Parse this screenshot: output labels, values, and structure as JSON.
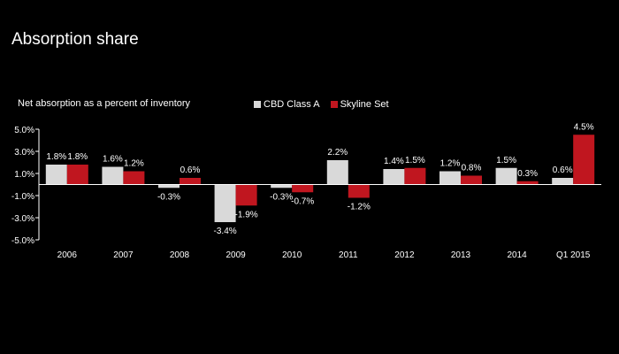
{
  "page": {
    "title": "Absorption share"
  },
  "chart_data": {
    "type": "bar",
    "title": "Absorption share",
    "subtitle": "Net absorption as a percent of inventory",
    "xlabel": "",
    "ylabel": "",
    "categories": [
      "2006",
      "2007",
      "2008",
      "2009",
      "2010",
      "2011",
      "2012",
      "2013",
      "2014",
      "Q1 2015"
    ],
    "series": [
      {
        "name": "CBD Class A",
        "color": "#d9d9d9",
        "values": [
          1.8,
          1.6,
          -0.3,
          -3.4,
          -0.3,
          2.2,
          1.4,
          1.2,
          1.5,
          0.6
        ],
        "labels": [
          "1.8%",
          "1.6%",
          "-0.3%",
          "-3.4%",
          "-0.3%",
          "2.2%",
          "1.4%",
          "1.2%",
          "1.5%",
          "0.6%"
        ]
      },
      {
        "name": "Skyline Set",
        "color": "#c0161f",
        "values": [
          1.8,
          1.2,
          0.6,
          -1.9,
          -0.7,
          -1.2,
          1.5,
          0.8,
          0.3,
          4.5
        ],
        "labels": [
          "1.8%",
          "1.2%",
          "0.6%",
          "-1.9%",
          "-0.7%",
          "-1.2%",
          "1.5%",
          "0.8%",
          "0.3%",
          "4.5%"
        ]
      }
    ],
    "yticks": [
      5.0,
      3.0,
      1.0,
      -1.0,
      -3.0,
      -5.0
    ],
    "ytick_labels": [
      "5.0%",
      "3.0%",
      "1.0%",
      "-1.0%",
      "-3.0%",
      "-5.0%"
    ],
    "ylim": [
      -5.0,
      5.0
    ],
    "grid": false,
    "legend": "top-center"
  }
}
